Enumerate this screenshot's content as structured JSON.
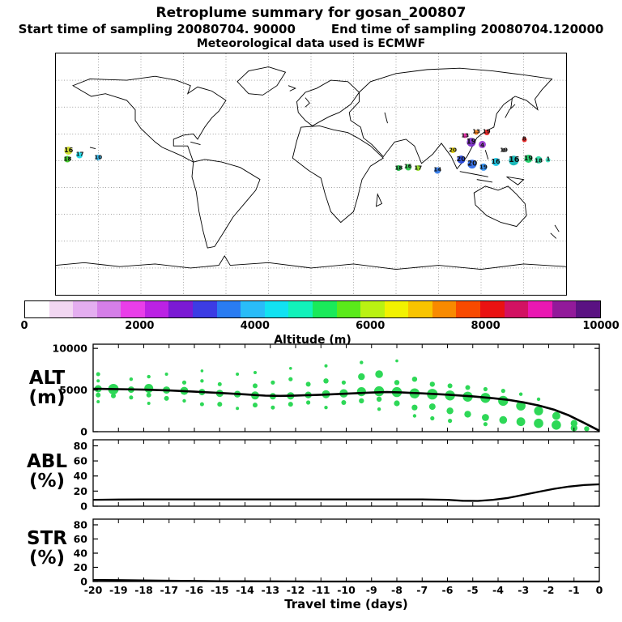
{
  "header": {
    "title": "Retroplume summary for gosan_200807",
    "start_label": "Start time of sampling 20080704. 90000",
    "end_label": "End time of sampling 20080704.120000",
    "met_label": "Meteorological data used is ECMWF"
  },
  "colorbar": {
    "title": "Altitude (m)",
    "min": 0,
    "max": 10000,
    "tick_values": [
      0,
      2000,
      4000,
      6000,
      8000,
      10000
    ],
    "colors": [
      "#ffffff",
      "#f2d7f2",
      "#e4aef0",
      "#d57fe8",
      "#e93ee9",
      "#bb22e4",
      "#7b1ad4",
      "#3c3ce4",
      "#2a7cf2",
      "#2abcf8",
      "#12e2f2",
      "#12f2ba",
      "#1aea5a",
      "#5aea1a",
      "#baf212",
      "#f2f200",
      "#f8c400",
      "#f88a00",
      "#f84a00",
      "#ea1212",
      "#d21262",
      "#ea18b2",
      "#921a9a",
      "#5a1282"
    ]
  },
  "map": {
    "markers": [
      {
        "x": 2.5,
        "y": 40.3,
        "c": "#cddc1e",
        "t": "16",
        "r": 5
      },
      {
        "x": 4.7,
        "y": 42.0,
        "c": "#18d8e8",
        "t": "17",
        "r": 4
      },
      {
        "x": 2.3,
        "y": 43.8,
        "c": "#36c41e",
        "t": "18",
        "r": 4
      },
      {
        "x": 8.3,
        "y": 43.2,
        "c": "#28b4ec",
        "t": "10",
        "r": 3.5
      },
      {
        "x": 67.2,
        "y": 47.6,
        "c": "#14b43c",
        "t": "18",
        "r": 3.5
      },
      {
        "x": 69.0,
        "y": 47.0,
        "c": "#28c846",
        "t": "16",
        "r": 4
      },
      {
        "x": 71.0,
        "y": 47.6,
        "c": "#8edc1e",
        "t": "17",
        "r": 3.5
      },
      {
        "x": 74.8,
        "y": 48.4,
        "c": "#2e78ea",
        "t": "14",
        "r": 4
      },
      {
        "x": 79.4,
        "y": 43.8,
        "c": "#2242dc",
        "t": "20",
        "r": 5
      },
      {
        "x": 81.6,
        "y": 46.0,
        "c": "#2a68ea",
        "t": "20",
        "r": 5.5
      },
      {
        "x": 83.8,
        "y": 47.0,
        "c": "#2a8cf2",
        "t": "19",
        "r": 4.5
      },
      {
        "x": 81.4,
        "y": 36.8,
        "c": "#7a28c8",
        "t": "19",
        "r": 5.5
      },
      {
        "x": 83.6,
        "y": 37.8,
        "c": "#9a3ad2",
        "t": "4",
        "r": 4.5
      },
      {
        "x": 80.2,
        "y": 34.2,
        "c": "#e022a2",
        "t": "13",
        "r": 3
      },
      {
        "x": 82.4,
        "y": 32.6,
        "c": "#f07812",
        "t": "13",
        "r": 3
      },
      {
        "x": 84.4,
        "y": 32.6,
        "c": "#ea1a1a",
        "t": "19",
        "r": 3.5
      },
      {
        "x": 91.8,
        "y": 35.6,
        "c": "#ea1a1a",
        "t": "8",
        "r": 3
      },
      {
        "x": 77.8,
        "y": 40.2,
        "c": "#ecd800",
        "t": "20",
        "r": 3.5
      },
      {
        "x": 86.2,
        "y": 45.0,
        "c": "#10c4e4",
        "t": "16",
        "r": 5
      },
      {
        "x": 89.8,
        "y": 44.2,
        "c": "#0ab4b4",
        "t": "16",
        "r": 6
      },
      {
        "x": 92.6,
        "y": 43.6,
        "c": "#12cc62",
        "t": "19",
        "r": 5
      },
      {
        "x": 94.6,
        "y": 44.2,
        "c": "#26d8a2",
        "t": "18",
        "r": 4.5
      },
      {
        "x": 96.5,
        "y": 44.0,
        "c": "#3ae4c0",
        "t": "1",
        "r": 3
      },
      {
        "x": 87.8,
        "y": 40.2,
        "c": "#3a3a3a",
        "t": "19",
        "r": 2.5
      }
    ]
  },
  "panels": {
    "alt": {
      "label_top": "ALT",
      "label_bottom": "(m)"
    },
    "abl": {
      "label_top": "ABL",
      "label_bottom": "(%)"
    },
    "str": {
      "label_top": "STR",
      "label_bottom": "(%)"
    }
  },
  "x_axis": {
    "label": "Travel time (days)",
    "tick_min": -20,
    "tick_max": 0,
    "tick_step": 1
  },
  "chart_data": [
    {
      "type": "scatter",
      "name": "ALT",
      "ylabel": "ALT (m)",
      "xlabel": "Travel time (days)",
      "ylim": [
        0,
        10500
      ],
      "yticks": [
        0,
        5000,
        10000
      ],
      "x_range": [
        -20,
        0
      ],
      "bubble_color": "#2ed857",
      "line_color": "#000000",
      "mean_line": {
        "x": [
          -20,
          -19,
          -18,
          -17,
          -16,
          -15,
          -14,
          -13.2,
          -12.6,
          -12,
          -11,
          -10,
          -9,
          -8.4,
          -7.8,
          -7,
          -6,
          -5,
          -4.2,
          -3.6,
          -3,
          -2.4,
          -1.8,
          -1.2,
          -0.6,
          0
        ],
        "y": [
          5150,
          5100,
          5050,
          4950,
          4800,
          4650,
          4480,
          4330,
          4300,
          4340,
          4430,
          4560,
          4700,
          4750,
          4710,
          4600,
          4440,
          4240,
          4020,
          3820,
          3520,
          3150,
          2650,
          1950,
          1050,
          120
        ]
      },
      "bubbles": [
        [
          -19.8,
          6900,
          2.5
        ],
        [
          -19.8,
          6100,
          2
        ],
        [
          -19.8,
          5150,
          4.5
        ],
        [
          -19.8,
          4400,
          3
        ],
        [
          -19.8,
          3600,
          2
        ],
        [
          -19.2,
          5100,
          6.5
        ],
        [
          -19.2,
          4300,
          3
        ],
        [
          -18.5,
          5050,
          4
        ],
        [
          -18.5,
          6300,
          2.2
        ],
        [
          -18.5,
          4100,
          2.5
        ],
        [
          -17.8,
          5200,
          5.5
        ],
        [
          -17.8,
          4400,
          3
        ],
        [
          -17.8,
          3400,
          2
        ],
        [
          -17.8,
          6600,
          2.2
        ],
        [
          -17.1,
          5000,
          4.5
        ],
        [
          -17.1,
          4000,
          3
        ],
        [
          -17.1,
          6900,
          2
        ],
        [
          -16.4,
          4900,
          5
        ],
        [
          -16.4,
          5900,
          2.6
        ],
        [
          -16.4,
          3700,
          2.2
        ],
        [
          -15.7,
          4750,
          4
        ],
        [
          -15.7,
          3300,
          2.5
        ],
        [
          -15.7,
          6100,
          2.2
        ],
        [
          -15.7,
          7300,
          1.8
        ],
        [
          -15.0,
          4600,
          4.5
        ],
        [
          -15.0,
          3300,
          3
        ],
        [
          -15.0,
          5700,
          2.5
        ],
        [
          -14.3,
          4500,
          4.2
        ],
        [
          -14.3,
          6900,
          2
        ],
        [
          -14.3,
          2800,
          2
        ],
        [
          -13.6,
          4350,
          5
        ],
        [
          -13.6,
          3200,
          3
        ],
        [
          -13.6,
          5500,
          3
        ],
        [
          -13.6,
          7100,
          2
        ],
        [
          -12.9,
          4250,
          4
        ],
        [
          -12.9,
          2900,
          2.5
        ],
        [
          -12.9,
          5900,
          2.6
        ],
        [
          -12.2,
          4300,
          4.6
        ],
        [
          -12.2,
          3300,
          3
        ],
        [
          -12.2,
          6300,
          2.6
        ],
        [
          -12.2,
          7600,
          1.8
        ],
        [
          -11.5,
          4400,
          4.2
        ],
        [
          -11.5,
          3500,
          2.6
        ],
        [
          -11.5,
          5700,
          3
        ],
        [
          -10.8,
          4500,
          5
        ],
        [
          -10.8,
          2900,
          2.2
        ],
        [
          -10.8,
          6100,
          3.2
        ],
        [
          -10.8,
          7900,
          2
        ],
        [
          -10.1,
          4600,
          5.2
        ],
        [
          -10.1,
          3500,
          3
        ],
        [
          -10.1,
          5900,
          2.6
        ],
        [
          -9.4,
          4800,
          5.6
        ],
        [
          -9.4,
          3700,
          3.2
        ],
        [
          -9.4,
          6600,
          4.2
        ],
        [
          -9.4,
          8300,
          2.2
        ],
        [
          -8.7,
          4850,
          6.2
        ],
        [
          -8.7,
          3900,
          3.2
        ],
        [
          -8.7,
          6900,
          4.8
        ],
        [
          -8.7,
          2700,
          2.2
        ],
        [
          -8.0,
          4750,
          6.2
        ],
        [
          -8.0,
          3400,
          3.6
        ],
        [
          -8.0,
          5900,
          3.2
        ],
        [
          -8.0,
          8500,
          1.8
        ],
        [
          -7.3,
          4600,
          6.2
        ],
        [
          -7.3,
          2900,
          3.6
        ],
        [
          -7.3,
          6300,
          3.2
        ],
        [
          -7.3,
          1900,
          2.2
        ],
        [
          -6.6,
          4500,
          6.6
        ],
        [
          -6.6,
          3000,
          4
        ],
        [
          -6.6,
          5700,
          3.2
        ],
        [
          -6.6,
          1600,
          2.6
        ],
        [
          -5.9,
          4350,
          6.2
        ],
        [
          -5.9,
          2500,
          4.2
        ],
        [
          -5.9,
          5500,
          3
        ],
        [
          -5.9,
          1300,
          2.6
        ],
        [
          -5.2,
          4200,
          6.2
        ],
        [
          -5.2,
          2100,
          4.2
        ],
        [
          -5.2,
          5300,
          3
        ],
        [
          -4.5,
          4050,
          6.2
        ],
        [
          -4.5,
          1700,
          4.4
        ],
        [
          -4.5,
          5100,
          2.6
        ],
        [
          -4.5,
          900,
          2.6
        ],
        [
          -3.8,
          3700,
          6.2
        ],
        [
          -3.8,
          1400,
          4.8
        ],
        [
          -3.8,
          4900,
          2.6
        ],
        [
          -3.1,
          3100,
          5.8
        ],
        [
          -3.1,
          1200,
          5.4
        ],
        [
          -3.1,
          4500,
          2.2
        ],
        [
          -2.4,
          2500,
          5.6
        ],
        [
          -2.4,
          1000,
          5.8
        ],
        [
          -2.4,
          3900,
          2.2
        ],
        [
          -1.7,
          1900,
          5
        ],
        [
          -1.7,
          800,
          5.8
        ],
        [
          -1.0,
          1000,
          4.2
        ],
        [
          -1.0,
          450,
          4.2
        ],
        [
          -0.5,
          350,
          3.2
        ]
      ]
    },
    {
      "type": "line",
      "name": "ABL",
      "ylabel": "ABL (%)",
      "xlabel": "Travel time (days)",
      "ylim": [
        0,
        88
      ],
      "yticks": [
        0,
        20,
        40,
        60,
        80
      ],
      "x_range": [
        -20,
        0
      ],
      "line_color": "#000000",
      "line": {
        "x": [
          -20,
          -19,
          -18,
          -17,
          -16,
          -15,
          -14,
          -13,
          -12,
          -11,
          -10,
          -9,
          -8,
          -7,
          -6,
          -5.4,
          -4.8,
          -4.2,
          -3.6,
          -3,
          -2.4,
          -1.8,
          -1.2,
          -0.6,
          0
        ],
        "y": [
          8.5,
          8.8,
          9,
          9,
          9,
          9,
          9,
          9,
          9,
          9,
          9,
          9,
          9,
          9,
          8.5,
          7.2,
          7,
          8.5,
          11,
          15,
          19,
          23,
          26,
          28,
          29
        ]
      }
    },
    {
      "type": "line",
      "name": "STR",
      "ylabel": "STR (%)",
      "xlabel": "Travel time (days)",
      "ylim": [
        0,
        88
      ],
      "yticks": [
        0,
        20,
        40,
        60,
        80
      ],
      "x_range": [
        -20,
        0
      ],
      "line_color": "#000000",
      "line": {
        "x": [
          -20,
          -19,
          -18,
          -17,
          -16,
          -15,
          -14,
          -13,
          -12,
          -11,
          0
        ],
        "y": [
          2.2,
          2.0,
          1.6,
          1.2,
          0.8,
          0.5,
          0.3,
          0.2,
          0.1,
          0,
          0
        ]
      }
    }
  ]
}
